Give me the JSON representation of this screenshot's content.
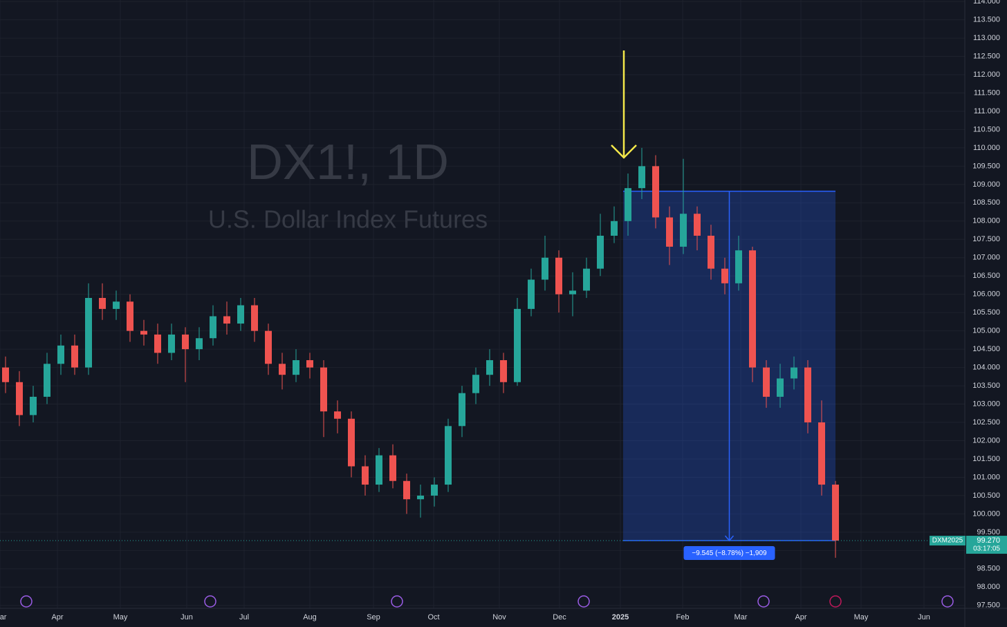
{
  "chart_data": {
    "type": "candlestick",
    "title": "DX1!, 1D",
    "subtitle": "U.S. Dollar Index Futures",
    "categories": [
      null,
      null,
      null,
      null,
      null,
      null,
      null,
      null,
      null,
      null,
      null,
      null,
      null,
      null,
      null,
      null,
      null,
      null,
      null,
      null,
      null,
      null,
      null,
      null,
      null,
      null,
      null,
      null,
      null,
      null,
      null,
      null,
      null,
      null,
      null,
      null,
      null,
      null,
      null,
      null,
      null,
      null,
      null,
      null,
      null,
      null,
      null,
      null,
      null,
      null,
      null,
      null,
      null,
      null,
      null,
      null,
      null,
      null,
      null,
      null,
      null
    ],
    "open": [
      104.0,
      103.6,
      102.7,
      103.2,
      104.1,
      104.6,
      104.0,
      105.9,
      105.6,
      105.8,
      105.0,
      104.9,
      104.4,
      104.9,
      104.5,
      104.8,
      105.4,
      105.2,
      105.7,
      105.0,
      104.1,
      103.8,
      104.2,
      104.0,
      102.8,
      102.6,
      101.3,
      100.8,
      101.6,
      100.9,
      100.4,
      100.5,
      100.8,
      102.4,
      103.3,
      103.8,
      104.2,
      103.6,
      105.6,
      106.4,
      107.0,
      106.0,
      106.1,
      106.7,
      107.6,
      108.0,
      108.9,
      109.5,
      108.1,
      107.3,
      108.2,
      107.6,
      106.7,
      106.3,
      107.2,
      104.0,
      103.2,
      103.7,
      104.0,
      102.5,
      100.8
    ],
    "high": [
      104.3,
      103.9,
      103.5,
      104.4,
      104.9,
      104.9,
      106.3,
      106.3,
      106.1,
      106.0,
      105.3,
      105.2,
      105.2,
      105.1,
      105.1,
      105.7,
      105.8,
      105.9,
      105.9,
      105.2,
      104.4,
      104.5,
      104.4,
      104.2,
      103.1,
      102.8,
      101.6,
      101.8,
      101.9,
      101.1,
      100.8,
      101.0,
      102.6,
      103.5,
      104.0,
      104.5,
      104.4,
      105.9,
      106.7,
      107.6,
      107.2,
      106.6,
      107.0,
      108.2,
      108.4,
      109.3,
      110.0,
      109.8,
      108.4,
      109.7,
      108.4,
      107.9,
      107.0,
      107.6,
      107.3,
      104.2,
      104.1,
      104.3,
      104.2,
      103.1,
      100.9
    ],
    "low": [
      103.3,
      102.4,
      102.5,
      103.0,
      103.8,
      103.8,
      103.8,
      105.3,
      105.3,
      104.7,
      104.6,
      104.1,
      104.2,
      103.6,
      104.2,
      104.6,
      104.9,
      105.0,
      104.7,
      103.8,
      103.4,
      103.6,
      103.7,
      102.1,
      102.2,
      101.0,
      100.5,
      100.6,
      100.7,
      100.0,
      99.9,
      100.2,
      100.6,
      102.1,
      103.0,
      103.5,
      103.3,
      103.5,
      105.4,
      106.1,
      105.5,
      105.4,
      105.9,
      106.5,
      107.4,
      107.6,
      108.6,
      107.8,
      106.8,
      107.1,
      107.2,
      106.4,
      106.0,
      106.1,
      103.6,
      102.9,
      102.9,
      103.4,
      102.2,
      100.5,
      98.8
    ],
    "close": [
      103.6,
      102.7,
      103.2,
      104.1,
      104.6,
      104.0,
      105.9,
      105.6,
      105.8,
      105.0,
      104.9,
      104.4,
      104.9,
      104.5,
      104.8,
      105.4,
      105.2,
      105.7,
      105.0,
      104.1,
      103.8,
      104.2,
      104.0,
      102.8,
      102.6,
      101.3,
      100.8,
      101.6,
      100.9,
      100.4,
      100.5,
      100.8,
      102.4,
      103.3,
      103.8,
      104.2,
      103.6,
      105.6,
      106.4,
      107.0,
      106.0,
      106.1,
      106.7,
      107.6,
      108.0,
      108.9,
      109.5,
      108.1,
      107.3,
      108.2,
      107.6,
      106.7,
      106.3,
      107.2,
      104.0,
      103.2,
      103.7,
      104.0,
      102.5,
      100.8,
      99.27
    ],
    "up_color": "#26a69a",
    "down_color": "#ef5350",
    "xlim": [
      -0.4,
      69.35
    ],
    "xticks": [
      {
        "value": -0.4,
        "label": "Mar"
      },
      {
        "value": 3.75,
        "label": "Apr"
      },
      {
        "value": 8.3,
        "label": "May"
      },
      {
        "value": 13.1,
        "label": "Jun"
      },
      {
        "value": 17.25,
        "label": "Jul"
      },
      {
        "value": 22,
        "label": "Aug"
      },
      {
        "value": 26.6,
        "label": "Sep"
      },
      {
        "value": 30.95,
        "label": "Oct"
      },
      {
        "value": 35.7,
        "label": "Nov"
      },
      {
        "value": 40.05,
        "label": "Dec"
      },
      {
        "value": 44.45,
        "label": "2025"
      },
      {
        "value": 48.95,
        "label": "Feb"
      },
      {
        "value": 53.15,
        "label": "Mar"
      },
      {
        "value": 57.5,
        "label": "Apr"
      },
      {
        "value": 61.85,
        "label": "May"
      },
      {
        "value": 66.4,
        "label": "Jun"
      }
    ],
    "ylim": [
      97.42,
      114.04
    ],
    "yticks": [
      {
        "value": 97.5,
        "label": "97.500"
      },
      {
        "value": 98,
        "label": "98.000"
      },
      {
        "value": 98.5,
        "label": "98.500"
      },
      {
        "value": 99,
        "label": "99.000"
      },
      {
        "value": 99.5,
        "label": "99.500"
      },
      {
        "value": 100,
        "label": "100.000"
      },
      {
        "value": 100.5,
        "label": "100.500"
      },
      {
        "value": 101,
        "label": "101.000"
      },
      {
        "value": 101.5,
        "label": "101.500"
      },
      {
        "value": 102,
        "label": "102.000"
      },
      {
        "value": 102.5,
        "label": "102.500"
      },
      {
        "value": 103,
        "label": "103.000"
      },
      {
        "value": 103.5,
        "label": "103.500"
      },
      {
        "value": 104,
        "label": "104.000"
      },
      {
        "value": 104.5,
        "label": "104.500"
      },
      {
        "value": 105,
        "label": "105.000"
      },
      {
        "value": 105.5,
        "label": "105.500"
      },
      {
        "value": 106,
        "label": "106.000"
      },
      {
        "value": 106.5,
        "label": "106.500"
      },
      {
        "value": 107,
        "label": "107.000"
      },
      {
        "value": 107.5,
        "label": "107.500"
      },
      {
        "value": 108,
        "label": "108.000"
      },
      {
        "value": 108.5,
        "label": "108.500"
      },
      {
        "value": 109,
        "label": "109.000"
      },
      {
        "value": 109.5,
        "label": "109.500"
      },
      {
        "value": 110,
        "label": "110.000"
      },
      {
        "value": 110.5,
        "label": "110.500"
      },
      {
        "value": 111,
        "label": "111.000"
      },
      {
        "value": 111.5,
        "label": "111.500"
      },
      {
        "value": 112,
        "label": "112.000"
      },
      {
        "value": 112.5,
        "label": "112.500"
      },
      {
        "value": 113,
        "label": "113.000"
      },
      {
        "value": 113.5,
        "label": "113.500"
      },
      {
        "value": 114,
        "label": "114.000"
      }
    ],
    "grid": true,
    "measure": {
      "x_from": 44.65,
      "x_to": 60,
      "from": 108.815,
      "to": 99.27,
      "label": "−9.545 (−8.78%) −1,909",
      "color": "#2962ff"
    },
    "last_price": {
      "value": 99.27,
      "label": "99.270",
      "symbol": "DXM2025",
      "countdown": "03:17:05",
      "color": "#26a69a"
    }
  }
}
